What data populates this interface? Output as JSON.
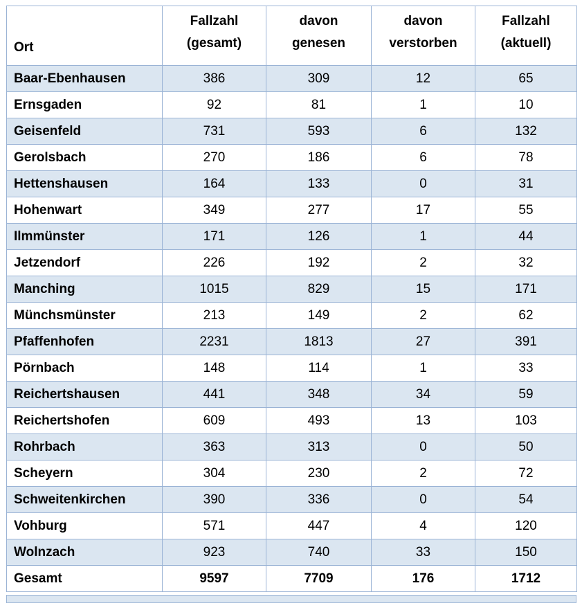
{
  "colors": {
    "row_alt": "#dbe6f1",
    "border": "#9ab3d5"
  },
  "table": {
    "columns": [
      {
        "key": "ort",
        "line1": "",
        "line2": "Ort"
      },
      {
        "key": "gesamt",
        "line1": "Fallzahl",
        "line2": "(gesamt)"
      },
      {
        "key": "genesen",
        "line1": "davon",
        "line2": "genesen"
      },
      {
        "key": "verstorben",
        "line1": "davon",
        "line2": "verstorben"
      },
      {
        "key": "aktuell",
        "line1": "Fallzahl",
        "line2": "(aktuell)"
      }
    ],
    "rows": [
      {
        "ort": "Baar-Ebenhausen",
        "gesamt": "386",
        "genesen": "309",
        "verstorben": "12",
        "aktuell": "65"
      },
      {
        "ort": "Ernsgaden",
        "gesamt": "92",
        "genesen": "81",
        "verstorben": "1",
        "aktuell": "10"
      },
      {
        "ort": "Geisenfeld",
        "gesamt": "731",
        "genesen": "593",
        "verstorben": "6",
        "aktuell": "132"
      },
      {
        "ort": "Gerolsbach",
        "gesamt": "270",
        "genesen": "186",
        "verstorben": "6",
        "aktuell": "78"
      },
      {
        "ort": "Hettenshausen",
        "gesamt": "164",
        "genesen": "133",
        "verstorben": "0",
        "aktuell": "31"
      },
      {
        "ort": "Hohenwart",
        "gesamt": "349",
        "genesen": "277",
        "verstorben": "17",
        "aktuell": "55"
      },
      {
        "ort": "Ilmmünster",
        "gesamt": "171",
        "genesen": "126",
        "verstorben": "1",
        "aktuell": "44"
      },
      {
        "ort": "Jetzendorf",
        "gesamt": "226",
        "genesen": "192",
        "verstorben": "2",
        "aktuell": "32"
      },
      {
        "ort": "Manching",
        "gesamt": "1015",
        "genesen": "829",
        "verstorben": "15",
        "aktuell": "171"
      },
      {
        "ort": "Münchsmünster",
        "gesamt": "213",
        "genesen": "149",
        "verstorben": "2",
        "aktuell": "62"
      },
      {
        "ort": "Pfaffenhofen",
        "gesamt": "2231",
        "genesen": "1813",
        "verstorben": "27",
        "aktuell": "391"
      },
      {
        "ort": "Pörnbach",
        "gesamt": "148",
        "genesen": "114",
        "verstorben": "1",
        "aktuell": "33"
      },
      {
        "ort": "Reichertshausen",
        "gesamt": "441",
        "genesen": "348",
        "verstorben": "34",
        "aktuell": "59"
      },
      {
        "ort": "Reichertshofen",
        "gesamt": "609",
        "genesen": "493",
        "verstorben": "13",
        "aktuell": "103"
      },
      {
        "ort": "Rohrbach",
        "gesamt": "363",
        "genesen": "313",
        "verstorben": "0",
        "aktuell": "50"
      },
      {
        "ort": "Scheyern",
        "gesamt": "304",
        "genesen": "230",
        "verstorben": "2",
        "aktuell": "72"
      },
      {
        "ort": "Schweitenkirchen",
        "gesamt": "390",
        "genesen": "336",
        "verstorben": "0",
        "aktuell": "54"
      },
      {
        "ort": "Vohburg",
        "gesamt": "571",
        "genesen": "447",
        "verstorben": "4",
        "aktuell": "120"
      },
      {
        "ort": "Wolnzach",
        "gesamt": "923",
        "genesen": "740",
        "verstorben": "33",
        "aktuell": "150"
      }
    ],
    "total_row": {
      "ort": "Gesamt",
      "gesamt": "9597",
      "genesen": "7709",
      "verstorben": "176",
      "aktuell": "1712"
    }
  }
}
